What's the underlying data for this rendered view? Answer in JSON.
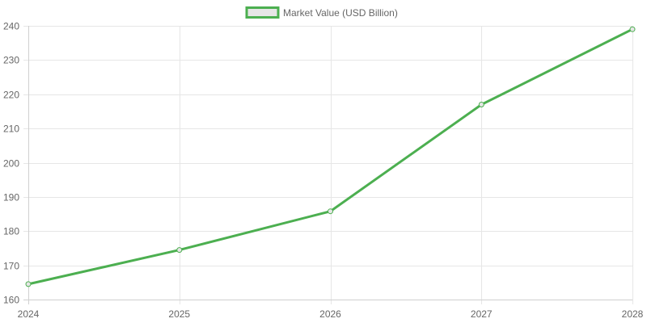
{
  "chart_data": {
    "type": "line",
    "title": "",
    "xlabel": "",
    "ylabel": "",
    "categories": [
      "2024",
      "2025",
      "2026",
      "2027",
      "2028"
    ],
    "series": [
      {
        "name": "Market Value (USD Billion)",
        "values": [
          164.5,
          174.5,
          185.8,
          217.0,
          239.0
        ],
        "color": "#4caf50",
        "fill": "#e6e6e6"
      }
    ],
    "ylim": [
      160,
      240
    ],
    "yticks": [
      160,
      170,
      180,
      190,
      200,
      210,
      220,
      230,
      240
    ],
    "grid": true,
    "legend": "top-center"
  }
}
